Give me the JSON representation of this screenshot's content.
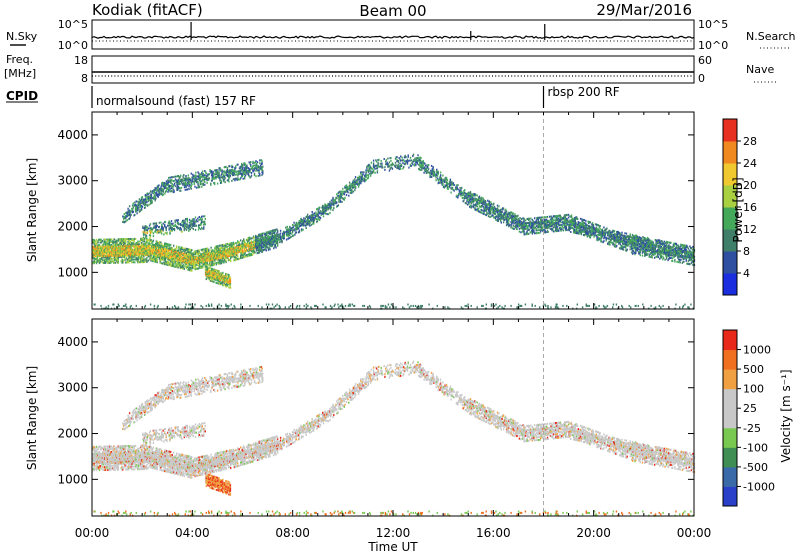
{
  "header": {
    "station": "Kodiak (fitACF)",
    "beam": "Beam 00",
    "date": "29/Mar/2016"
  },
  "strip1": {
    "left_label": "N.Sky",
    "right_label": "N.Search",
    "left_ticks": [
      "10^5",
      "10^0"
    ],
    "right_ticks": [
      "10^5",
      "10^0"
    ]
  },
  "strip2": {
    "left_label_1": "Freq.",
    "left_label_2": "[MHz]",
    "right_label": "Nave",
    "left_ticks": [
      "18",
      "8"
    ],
    "right_ticks": [
      "60",
      "0"
    ]
  },
  "cpid": {
    "label": "CPID",
    "modes": [
      {
        "text": "normalsound (fast) 157 RF",
        "start_hour": 0
      },
      {
        "text": "rbsp 200 RF",
        "start_hour": 18
      }
    ]
  },
  "chart_data": [
    {
      "type": "heatmap",
      "name": "power",
      "ylabel": "Slant Range [km]",
      "y_ticks": [
        "1000",
        "2000",
        "3000",
        "4000"
      ],
      "y_tick_values": [
        1000,
        2000,
        3000,
        4000
      ],
      "ylim": [
        200,
        4500
      ],
      "xlim": [
        0,
        24
      ],
      "colorbar_label": "Power [dB]",
      "colorbar_ticks": [
        "4",
        "8",
        "12",
        "16",
        "20",
        "24",
        "28"
      ],
      "colorbar_colors": [
        "#1a2ee0",
        "#2f4fa0",
        "#3f7f6a",
        "#44a85a",
        "#a8d040",
        "#f0c830",
        "#f08a20",
        "#e83020"
      ]
    },
    {
      "type": "heatmap",
      "name": "velocity",
      "ylabel": "Slant Range [km]",
      "y_ticks": [
        "1000",
        "2000",
        "3000",
        "4000"
      ],
      "y_tick_values": [
        1000,
        2000,
        3000,
        4000
      ],
      "ylim": [
        200,
        4500
      ],
      "xlim": [
        0,
        24
      ],
      "colorbar_label": "Velocity [m s⁻¹]",
      "colorbar_ticks": [
        "1000",
        "500",
        "100",
        "25",
        "-25",
        "-100",
        "-500",
        "-1000"
      ],
      "colorbar_colors": [
        "#2a40c8",
        "#3a6aa8",
        "#3f8f55",
        "#79c850",
        "#c8c8c8",
        "#c8c8c8",
        "#f0a040",
        "#f07020",
        "#e82818"
      ]
    }
  ],
  "x_axis": {
    "label": "Time UT",
    "ticks": [
      "00:00",
      "04:00",
      "08:00",
      "12:00",
      "16:00",
      "20:00",
      "00:00"
    ],
    "tick_hours": [
      0,
      4,
      8,
      12,
      16,
      20,
      24
    ]
  }
}
